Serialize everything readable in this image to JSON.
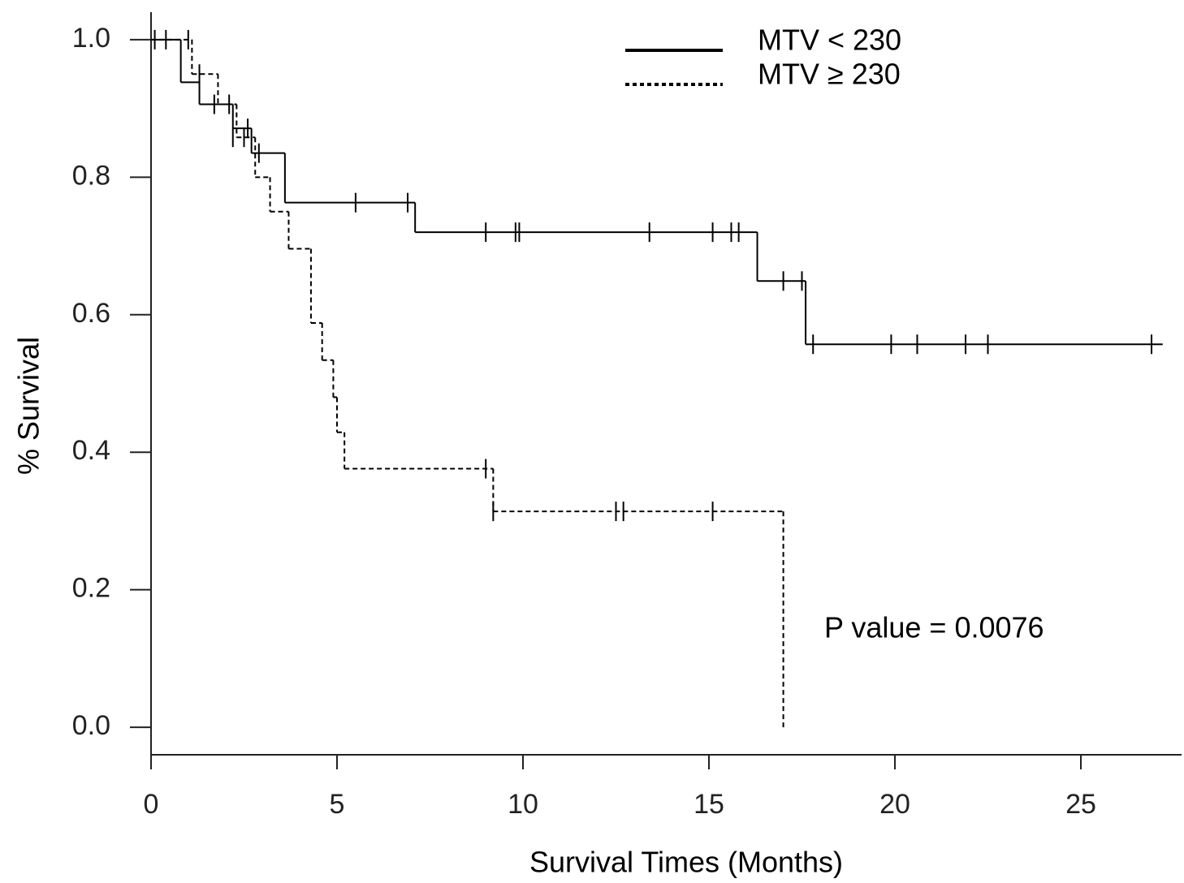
{
  "chart_data": {
    "type": "step",
    "x_label": "Survival Times (Months)",
    "y_label": "% Survival",
    "annotation": "P value = 0.0076",
    "xlim": [
      0,
      27.7
    ],
    "ylim": [
      -0.04,
      1.04
    ],
    "xticks": [
      0,
      5,
      10,
      15,
      20,
      25
    ],
    "yticks": [
      {
        "value": 0,
        "label": "0.0"
      },
      0.2,
      0.4,
      0.6,
      0.8,
      {
        "value": 1,
        "label": "1.0"
      }
    ],
    "legend_position": "top",
    "series": [
      {
        "name": "MTV < 230",
        "color": "#000000",
        "line_style": "solid",
        "x": [
          0,
          0.8,
          1.3,
          2.2,
          2.7,
          3.6,
          7.1,
          16.3,
          17.6,
          27.2
        ],
        "values": [
          1,
          0.938,
          0.906,
          0.871,
          0.835,
          0.763,
          0.72,
          0.649,
          0.557,
          0.557
        ],
        "censor_x": [
          0.1,
          0.4,
          1.0,
          1.7,
          2.1,
          2.6,
          2.9,
          5.5,
          6.9,
          9.0,
          9.8,
          9.9,
          13.4,
          15.1,
          15.6,
          15.8,
          17.0,
          17.5,
          17.8,
          19.9,
          20.6,
          21.9,
          22.5,
          26.9
        ],
        "censor_values": [
          1,
          1,
          1,
          0.906,
          0.906,
          0.871,
          0.835,
          0.763,
          0.763,
          0.72,
          0.72,
          0.72,
          0.72,
          0.72,
          0.72,
          0.72,
          0.649,
          0.649,
          0.557,
          0.557,
          0.557,
          0.557,
          0.557,
          0.557
        ]
      },
      {
        "name": "MTV ≥ 230",
        "color": "#000000",
        "line_style": "dashed",
        "x": [
          0,
          1.1,
          1.8,
          2.3,
          2.8,
          3.2,
          3.7,
          4.3,
          4.6,
          4.9,
          5.0,
          5.2,
          9.2,
          17.0
        ],
        "values": [
          1,
          0.95,
          0.906,
          0.858,
          0.8,
          0.75,
          0.696,
          0.588,
          0.534,
          0.48,
          0.429,
          0.376,
          0.314,
          0
        ],
        "censor_x": [
          1.3,
          2.2,
          2.5,
          9.0,
          9.2,
          12.5,
          12.7,
          15.1
        ],
        "censor_values": [
          0.95,
          0.858,
          0.858,
          0.376,
          0.314,
          0.314,
          0.314,
          0.314
        ]
      }
    ]
  }
}
